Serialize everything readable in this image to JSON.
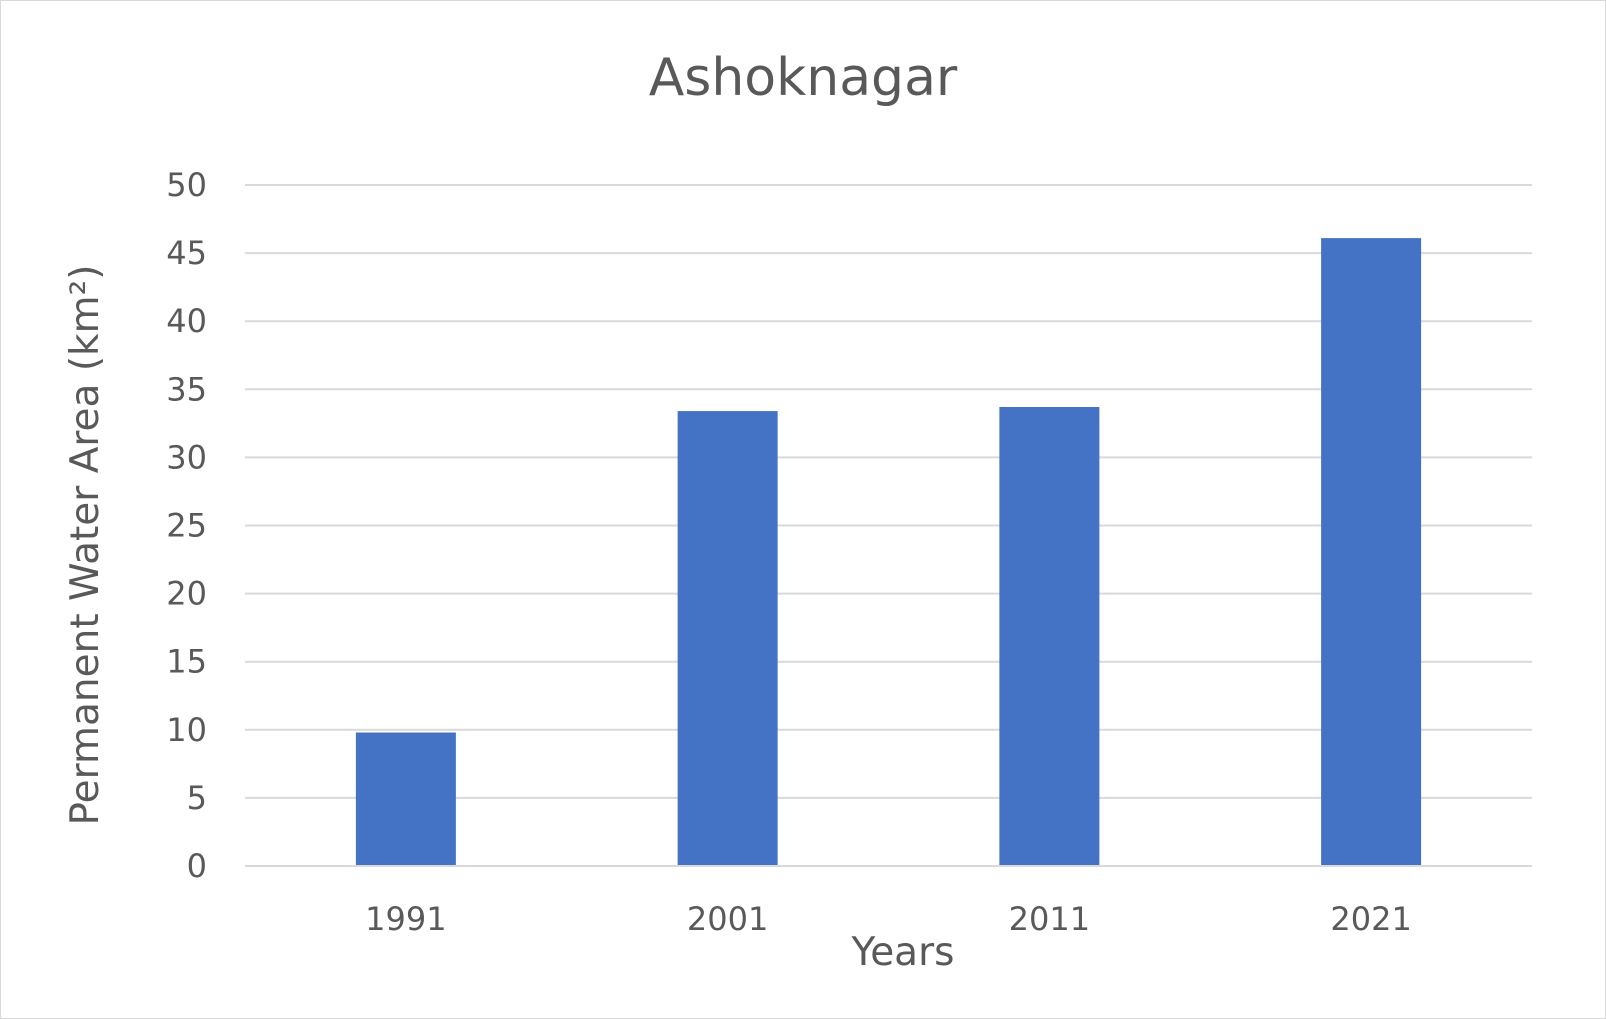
{
  "chart_data": {
    "type": "bar",
    "title": "Ashoknagar",
    "xlabel": "Years",
    "ylabel": "Permanent Water Area (km²)",
    "categories": [
      "1991",
      "2001",
      "2011",
      "2021"
    ],
    "values": [
      9.8,
      33.4,
      33.7,
      46.1
    ],
    "ylim": [
      0,
      50
    ],
    "yticks": [
      "0",
      "5",
      "10",
      "15",
      "20",
      "25",
      "30",
      "35",
      "40",
      "45",
      "50"
    ],
    "grid": true,
    "legend": "none",
    "bar_color": "#4472c4"
  }
}
